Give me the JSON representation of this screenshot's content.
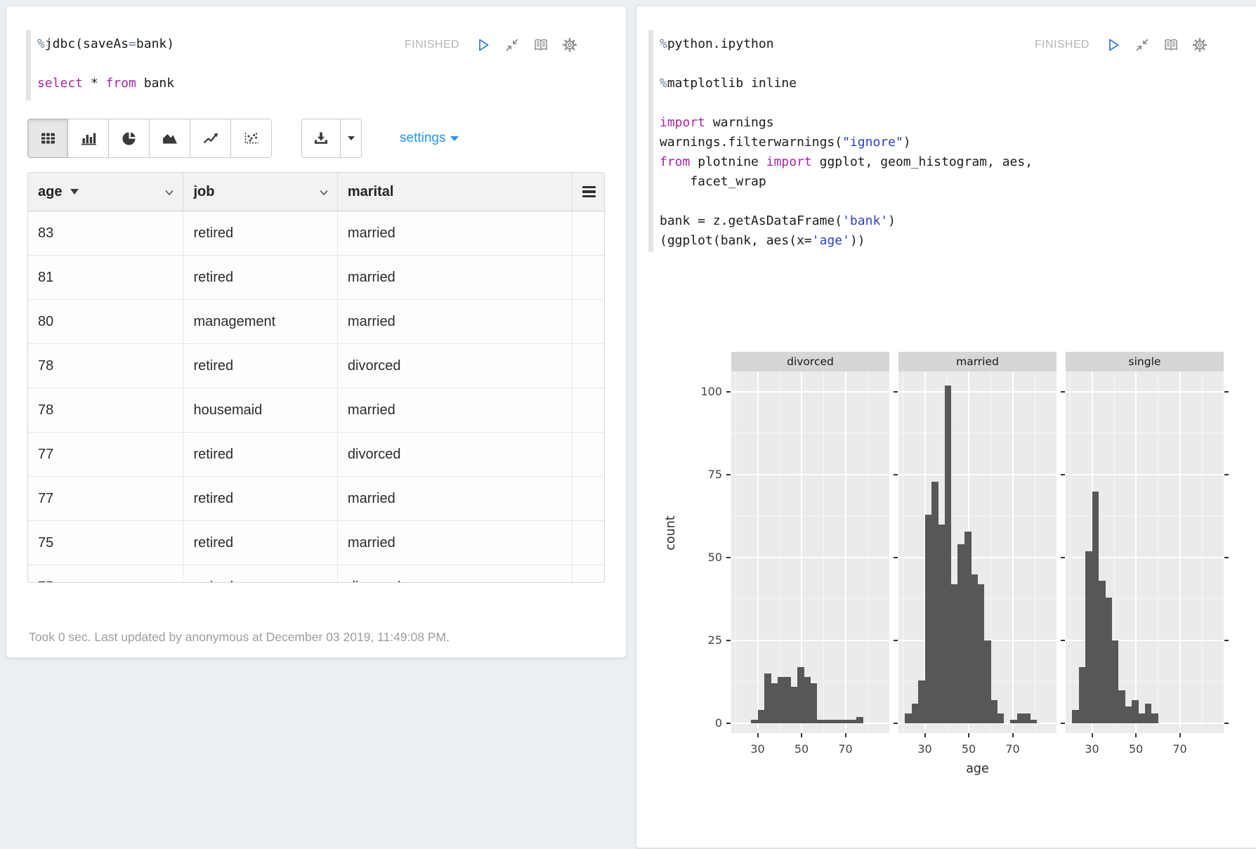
{
  "left_paragraph": {
    "status": "FINISHED",
    "code_lines": [
      [
        {
          "t": "%",
          "c": "pct"
        },
        {
          "t": "jdbc(saveAs",
          "c": "plain"
        },
        {
          "t": "=",
          "c": "op"
        },
        {
          "t": "bank)",
          "c": "plain"
        }
      ],
      [],
      [
        {
          "t": "select",
          "c": "kw"
        },
        {
          "t": " * ",
          "c": "plain"
        },
        {
          "t": "from",
          "c": "kw"
        },
        {
          "t": " bank",
          "c": "plain"
        }
      ]
    ],
    "toolbar": {
      "settings_label": "settings",
      "chart_types": [
        "table",
        "bar-chart",
        "pie-chart",
        "area-chart",
        "line-chart",
        "scatter-chart"
      ],
      "active_chart_type": "table"
    },
    "table": {
      "columns": [
        {
          "label": "age",
          "sorted": "desc",
          "chevron": true
        },
        {
          "label": "job",
          "chevron": true
        },
        {
          "label": "marital"
        }
      ],
      "rows": [
        [
          "83",
          "retired",
          "married"
        ],
        [
          "81",
          "retired",
          "married"
        ],
        [
          "80",
          "management",
          "married"
        ],
        [
          "78",
          "retired",
          "divorced"
        ],
        [
          "78",
          "housemaid",
          "married"
        ],
        [
          "77",
          "retired",
          "divorced"
        ],
        [
          "77",
          "retired",
          "married"
        ],
        [
          "75",
          "retired",
          "married"
        ]
      ],
      "clipped_row": [
        "75",
        "retired",
        "divorced"
      ]
    },
    "footer": "Took 0 sec. Last updated by anonymous at December 03 2019, 11:49:08 PM."
  },
  "right_paragraph": {
    "status": "FINISHED",
    "code_lines": [
      [
        {
          "t": "%",
          "c": "pct"
        },
        {
          "t": "python.ipython",
          "c": "plain"
        }
      ],
      [],
      [
        {
          "t": "%",
          "c": "pct"
        },
        {
          "t": "matplotlib inline",
          "c": "plain"
        }
      ],
      [],
      [
        {
          "t": "import",
          "c": "kw"
        },
        {
          "t": " warnings",
          "c": "plain"
        }
      ],
      [
        {
          "t": "warnings.filterwarnings(",
          "c": "plain"
        },
        {
          "t": "\"ignore\"",
          "c": "str"
        },
        {
          "t": ")",
          "c": "plain"
        }
      ],
      [
        {
          "t": "from",
          "c": "kw"
        },
        {
          "t": " plotnine ",
          "c": "plain"
        },
        {
          "t": "import",
          "c": "kw"
        },
        {
          "t": " ggplot, geom_histogram, aes,",
          "c": "plain"
        }
      ],
      [
        {
          "t": "    facet_wrap",
          "c": "plain"
        }
      ],
      [],
      [
        {
          "t": "bank = z.getAsDataFrame(",
          "c": "plain"
        },
        {
          "t": "'bank'",
          "c": "str"
        },
        {
          "t": ")",
          "c": "plain"
        }
      ],
      [
        {
          "t": "(ggplot(bank, aes(x=",
          "c": "plain"
        },
        {
          "t": "'age'",
          "c": "str"
        },
        {
          "t": "))",
          "c": "plain"
        }
      ]
    ]
  },
  "chart_data": {
    "type": "bar",
    "subtype": "faceted_histogram",
    "title": "",
    "xlabel": "age",
    "ylabel": "count",
    "facets": [
      {
        "name": "divorced",
        "counts": [
          0,
          0,
          0,
          1,
          4,
          15,
          12,
          14,
          14,
          11,
          17,
          14,
          12,
          1,
          1,
          1,
          1,
          1,
          1,
          2,
          0,
          0,
          0,
          0
        ]
      },
      {
        "name": "married",
        "counts": [
          0,
          3,
          6,
          13,
          63,
          73,
          60,
          102,
          42,
          54,
          58,
          45,
          42,
          25,
          7,
          3,
          0,
          1,
          3,
          3,
          1,
          0,
          0,
          0
        ]
      },
      {
        "name": "single",
        "counts": [
          0,
          4,
          17,
          52,
          70,
          43,
          38,
          25,
          10,
          5,
          7,
          3,
          6,
          3,
          0,
          0,
          0,
          0,
          0,
          0,
          0,
          0,
          0,
          0
        ]
      }
    ],
    "bins": {
      "start": 18,
      "width": 3
    },
    "x_ticks": [
      30,
      50,
      70
    ],
    "y_ticks": [
      0,
      25,
      50,
      75,
      100
    ],
    "x_minor_gridlines": [
      20,
      40,
      60,
      80
    ],
    "y_minor_gridlines": [
      12.5,
      37.5,
      62.5,
      87.5
    ],
    "xlim": [
      18,
      90
    ],
    "ylim": [
      0,
      107
    ],
    "legend": "none",
    "grid": true
  },
  "icons": {
    "paragraph_controls": [
      "play-icon",
      "shrink-icon",
      "book-icon",
      "gear-icon"
    ],
    "chart_toolbar": [
      "table-icon",
      "bar-chart-icon",
      "pie-chart-icon",
      "area-chart-icon",
      "line-chart-icon",
      "scatter-chart-icon",
      "download-icon",
      "caret-down-icon"
    ],
    "table_header": [
      "sort-desc-icon",
      "chevron-down-icon",
      "grid-menu-icon"
    ]
  },
  "colors": {
    "page_bg": "#eceff1",
    "accent_blue": "#2196f3",
    "play_blue": "#3a7bd5",
    "status_gray": "#b5b5b5",
    "keyword_purple": "#a626a4",
    "string_blue": "#2b3fd0",
    "bar_fill": "#575757",
    "panel_bg": "#ebebeb",
    "strip_bg": "#d6d6d6"
  }
}
